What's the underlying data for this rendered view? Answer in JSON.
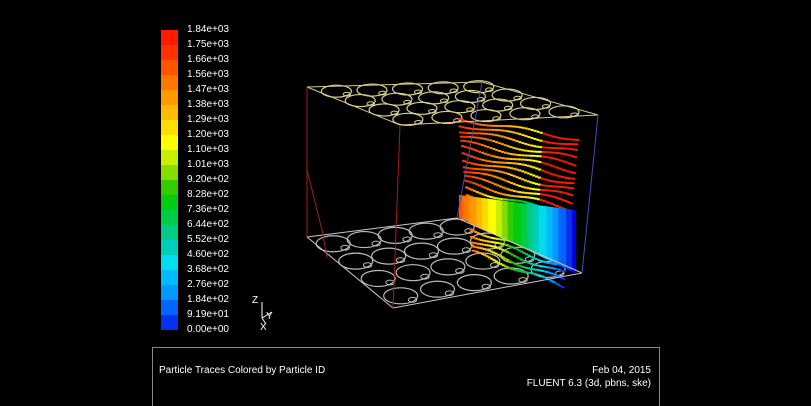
{
  "chart_data": {
    "type": "3d-particle-traces",
    "title": "Particle Traces Colored by Particle ID",
    "colorbar": {
      "min": 0,
      "max": 1840,
      "tick_labels": [
        "1.84e+03",
        "1.75e+03",
        "1.66e+03",
        "1.56e+03",
        "1.47e+03",
        "1.38e+03",
        "1.29e+03",
        "1.20e+03",
        "1.10e+03",
        "1.01e+03",
        "9.20e+02",
        "8.28e+02",
        "7.36e+02",
        "6.44e+02",
        "5.52e+02",
        "4.60e+02",
        "3.68e+02",
        "2.76e+02",
        "1.84e+02",
        "9.19e+01",
        "0.00e+00"
      ],
      "colors": [
        "#ff1a00",
        "#ff3300",
        "#ff5500",
        "#ff7700",
        "#ff9900",
        "#ffbb00",
        "#ffdd00",
        "#ffff00",
        "#c8ee00",
        "#88dd00",
        "#33cc00",
        "#00cc11",
        "#00cc44",
        "#00cc88",
        "#00ccbb",
        "#00ddee",
        "#00bbff",
        "#0099ff",
        "#0066ff",
        "#0033ee",
        "#0000dd"
      ]
    },
    "axes": [
      "Z",
      "Y",
      "X"
    ]
  },
  "footer": {
    "title": "Particle Traces Colored by Particle ID",
    "date": "Feb 04, 2015",
    "version": "FLUENT 6.3 (3d, pbns, ske)"
  }
}
